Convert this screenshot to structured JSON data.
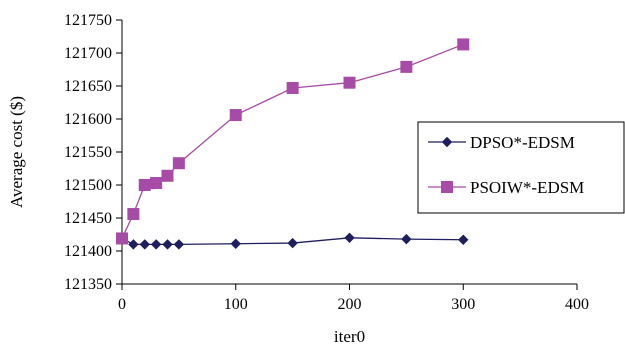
{
  "chart_data": {
    "type": "line",
    "title": "",
    "xlabel": "iter0",
    "ylabel": "Average cost ($)",
    "xlim": [
      0,
      400
    ],
    "ylim": [
      121350,
      121750
    ],
    "xticks": [
      0,
      100,
      200,
      300,
      400
    ],
    "yticks": [
      121350,
      121400,
      121450,
      121500,
      121550,
      121600,
      121650,
      121700,
      121750
    ],
    "grid": false,
    "legend_position": "right",
    "series": [
      {
        "name": "DPSO*-EDSM",
        "color": "#1f1f5e",
        "marker": "diamond",
        "x": [
          0,
          10,
          20,
          30,
          40,
          50,
          100,
          150,
          200,
          250,
          300
        ],
        "y": [
          121419,
          121410,
          121410,
          121410,
          121410,
          121410,
          121411,
          121412,
          121420,
          121418,
          121417
        ]
      },
      {
        "name": "PSOIW*-EDSM",
        "color": "#a64ca6",
        "marker": "square",
        "x": [
          0,
          10,
          20,
          30,
          40,
          50,
          100,
          150,
          200,
          250,
          300
        ],
        "y": [
          121419,
          121456,
          121500,
          121503,
          121514,
          121533,
          121606,
          121647,
          121655,
          121679,
          121713
        ]
      }
    ]
  }
}
